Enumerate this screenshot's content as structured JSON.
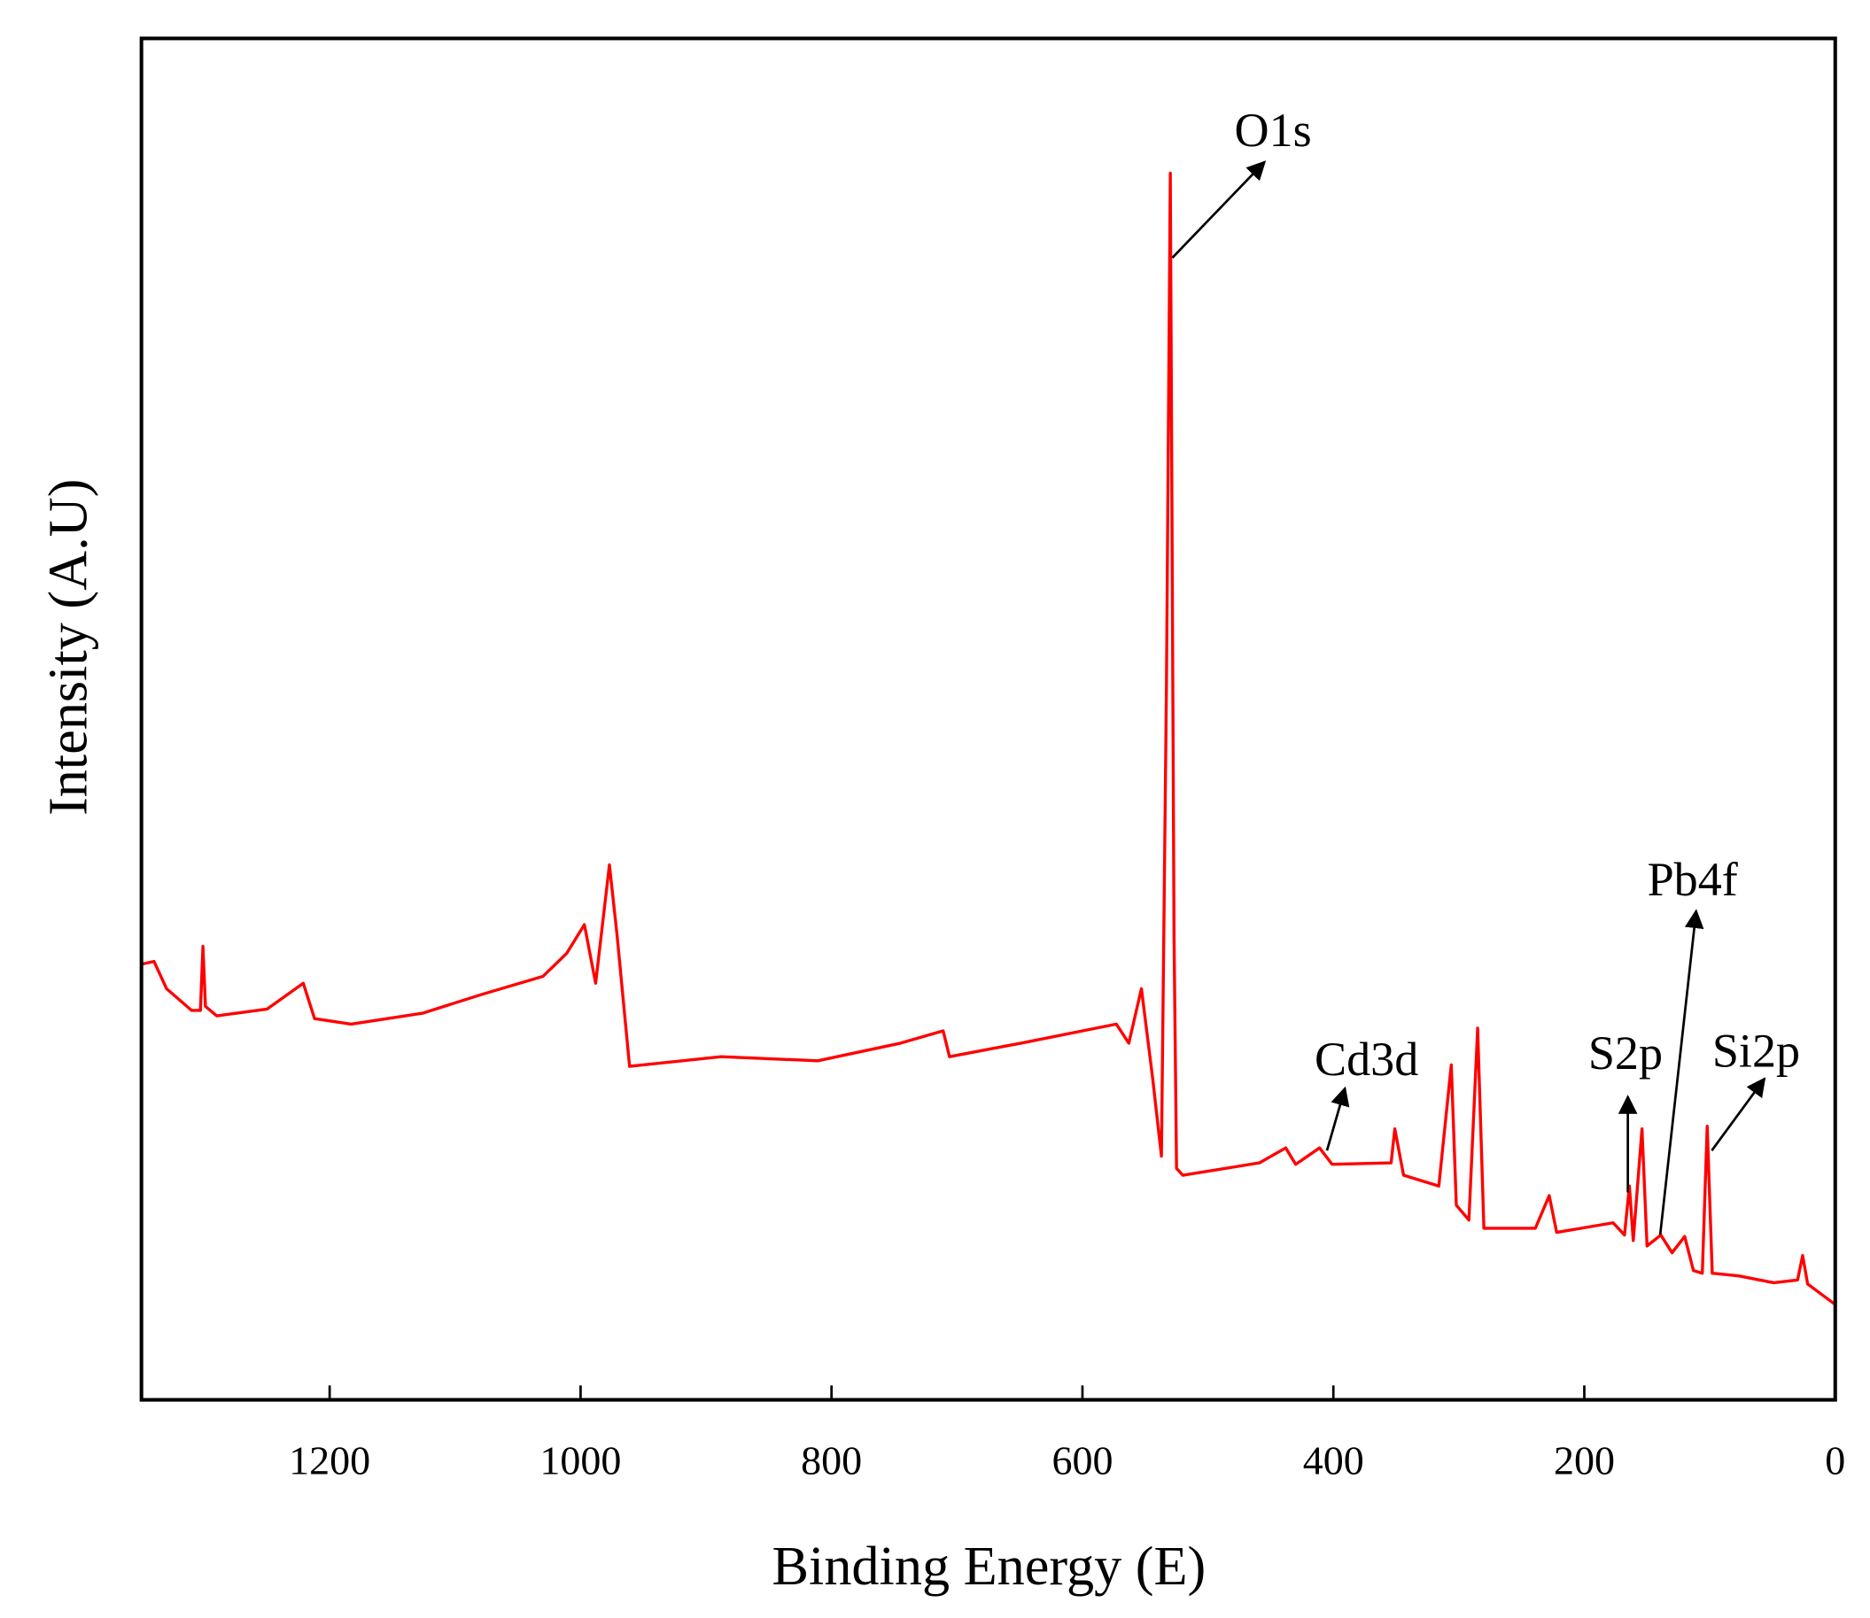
{
  "chart_data": {
    "type": "line",
    "x_label": "Binding Energy (E)",
    "y_label": "Intensity (A.U)",
    "xlim": [
      1350,
      0
    ],
    "ylim": [
      0,
      100
    ],
    "xticks": [
      1200,
      1000,
      800,
      600,
      400,
      200,
      0
    ],
    "color": "#ff0000",
    "annotations": [
      "O1s",
      "Cd3d",
      "Pb4f",
      "S2p",
      "Si2p"
    ],
    "x": [
      1350,
      1340,
      1330,
      1310,
      1303,
      1301,
      1299,
      1290,
      1250,
      1221,
      1212,
      1183,
      1126,
      1078,
      1030,
      1011,
      997,
      988,
      977,
      971,
      961,
      888,
      811,
      745,
      711,
      706,
      649,
      573,
      563,
      553,
      544,
      537,
      533,
      530,
      527,
      525,
      520,
      459,
      438,
      430,
      411,
      401,
      354,
      351,
      344,
      316,
      306,
      302,
      292,
      285,
      280,
      239,
      228,
      222,
      177,
      168,
      164,
      161,
      154,
      150,
      139,
      130,
      120,
      113,
      106,
      102,
      98,
      77,
      49,
      30,
      26,
      22,
      0
    ],
    "values": [
      32.0,
      32.2,
      30.2,
      28.6,
      28.6,
      33.3,
      28.9,
      28.2,
      28.7,
      30.6,
      28.0,
      27.6,
      28.4,
      29.8,
      31.1,
      32.8,
      34.9,
      30.6,
      39.3,
      34.2,
      24.5,
      25.2,
      24.9,
      26.2,
      27.1,
      25.2,
      26.2,
      27.6,
      26.2,
      30.2,
      23.6,
      17.9,
      52.6,
      90.1,
      34.2,
      17.0,
      16.5,
      17.4,
      18.5,
      17.3,
      18.5,
      17.3,
      17.4,
      19.9,
      16.5,
      15.7,
      24.6,
      14.3,
      13.2,
      27.3,
      12.6,
      12.6,
      15.0,
      12.3,
      13.0,
      12.1,
      15.7,
      11.7,
      19.9,
      11.3,
      12.1,
      10.8,
      12.0,
      9.5,
      9.3,
      20.1,
      9.3,
      9.1,
      8.6,
      8.8,
      10.6,
      8.5,
      7.0
    ]
  }
}
